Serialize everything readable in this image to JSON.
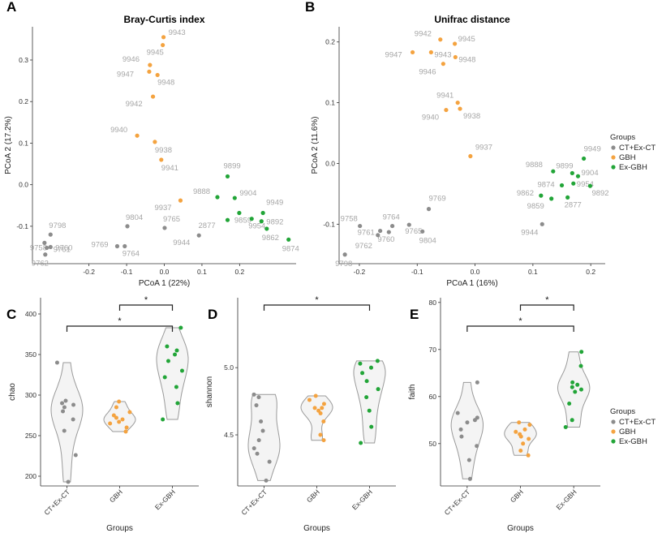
{
  "colors": {
    "CT+Ex-CT": "#8c8c8c",
    "GBH": "#f4a340",
    "Ex-GBH": "#22a538"
  },
  "panels": {
    "A": "A",
    "B": "B",
    "C": "C",
    "D": "D",
    "E": "E"
  },
  "legend": {
    "title": "Groups",
    "items": [
      "CT+Ex-CT",
      "GBH",
      "Ex-GBH"
    ]
  },
  "chart_data": [
    {
      "id": "A",
      "type": "scatter",
      "title": "Bray-Curtis index",
      "xlabel": "PCoA 1 (22%)",
      "ylabel": "PCoA 2 (17.2%)",
      "xlim": [
        -0.35,
        0.35
      ],
      "ylim": [
        -0.19,
        0.38
      ],
      "xticks": [
        "-0.2",
        "-0.1",
        "0.0",
        "0.1",
        "0.2"
      ],
      "xtick_values": [
        -0.2,
        -0.1,
        0.0,
        0.1,
        0.2
      ],
      "yticks": [
        "-0.1",
        "0.0",
        "0.1",
        "0.2",
        "0.3"
      ],
      "ytick_values": [
        -0.1,
        0.0,
        0.1,
        0.2,
        0.3
      ],
      "points": [
        {
          "label": "9943",
          "group": "GBH",
          "x": -0.002,
          "y": 0.355
        },
        {
          "label": "9945",
          "group": "GBH",
          "x": -0.004,
          "y": 0.336
        },
        {
          "label": "9946",
          "group": "GBH",
          "x": -0.038,
          "y": 0.288
        },
        {
          "label": "9947",
          "group": "GBH",
          "x": -0.04,
          "y": 0.272
        },
        {
          "label": "9948",
          "group": "GBH",
          "x": -0.018,
          "y": 0.264
        },
        {
          "label": "9942",
          "group": "GBH",
          "x": -0.03,
          "y": 0.212
        },
        {
          "label": "9940",
          "group": "GBH",
          "x": -0.072,
          "y": 0.118
        },
        {
          "label": "9938",
          "group": "GBH",
          "x": -0.025,
          "y": 0.103
        },
        {
          "label": "9941",
          "group": "GBH",
          "x": -0.008,
          "y": 0.06
        },
        {
          "label": "9937",
          "group": "GBH",
          "x": 0.043,
          "y": -0.038
        },
        {
          "label": "9899",
          "group": "Ex-GBH",
          "x": 0.168,
          "y": 0.02
        },
        {
          "label": "9888",
          "group": "Ex-GBH",
          "x": 0.141,
          "y": -0.03
        },
        {
          "label": "9904",
          "group": "Ex-GBH",
          "x": 0.187,
          "y": -0.032
        },
        {
          "label": "9859",
          "group": "Ex-GBH",
          "x": 0.199,
          "y": -0.068
        },
        {
          "label": "9949",
          "group": "Ex-GBH",
          "x": 0.262,
          "y": -0.068
        },
        {
          "label": "9954",
          "group": "Ex-GBH",
          "x": 0.232,
          "y": -0.082
        },
        {
          "label": "9892",
          "group": "Ex-GBH",
          "x": 0.258,
          "y": -0.088
        },
        {
          "label": "9862",
          "group": "Ex-GBH",
          "x": 0.272,
          "y": -0.106
        },
        {
          "label": "9874",
          "group": "Ex-GBH",
          "x": 0.33,
          "y": -0.132
        },
        {
          "label": "2877",
          "group": "Ex-GBH",
          "x": 0.168,
          "y": -0.085
        },
        {
          "label": "9804",
          "group": "CT+Ex-CT",
          "x": -0.098,
          "y": -0.1
        },
        {
          "label": "9765",
          "group": "CT+Ex-CT",
          "x": 0.001,
          "y": -0.104
        },
        {
          "label": "9769",
          "group": "CT+Ex-CT",
          "x": -0.125,
          "y": -0.148
        },
        {
          "label": "9764",
          "group": "CT+Ex-CT",
          "x": -0.105,
          "y": -0.148
        },
        {
          "label": "9944",
          "group": "CT+Ex-CT",
          "x": 0.092,
          "y": -0.122
        },
        {
          "label": "9798",
          "group": "CT+Ex-CT",
          "x": -0.302,
          "y": -0.12
        },
        {
          "label": "9758",
          "group": "CT+Ex-CT",
          "x": -0.318,
          "y": -0.14
        },
        {
          "label": "9760",
          "group": "CT+Ex-CT",
          "x": -0.302,
          "y": -0.15
        },
        {
          "label": "9761",
          "group": "CT+Ex-CT",
          "x": -0.312,
          "y": -0.152
        },
        {
          "label": "9762",
          "group": "CT+Ex-CT",
          "x": -0.316,
          "y": -0.168
        }
      ]
    },
    {
      "id": "B",
      "type": "scatter",
      "title": "Unifrac distance",
      "xlabel": "PCoA 1 (16%)",
      "ylabel": "PCoA 2 (11.6%)",
      "xlim": [
        -0.235,
        0.225
      ],
      "ylim": [
        -0.165,
        0.225
      ],
      "xticks": [
        "-0.2",
        "-0.1",
        "0.0",
        "0.1",
        "0.2"
      ],
      "xtick_values": [
        -0.2,
        -0.1,
        0.0,
        0.1,
        0.2
      ],
      "yticks": [
        "-0.1",
        "0.0",
        "0.1",
        "0.2"
      ],
      "ytick_values": [
        -0.1,
        0.0,
        0.1,
        0.2
      ],
      "points": [
        {
          "label": "9942",
          "group": "GBH",
          "x": -0.06,
          "y": 0.204
        },
        {
          "label": "9945",
          "group": "GBH",
          "x": -0.035,
          "y": 0.197
        },
        {
          "label": "9947",
          "group": "GBH",
          "x": -0.108,
          "y": 0.183
        },
        {
          "label": "9943",
          "group": "GBH",
          "x": -0.076,
          "y": 0.183
        },
        {
          "label": "9948",
          "group": "GBH",
          "x": -0.034,
          "y": 0.175
        },
        {
          "label": "9946",
          "group": "GBH",
          "x": -0.055,
          "y": 0.164
        },
        {
          "label": "9941",
          "group": "GBH",
          "x": -0.03,
          "y": 0.1
        },
        {
          "label": "9940",
          "group": "GBH",
          "x": -0.05,
          "y": 0.088
        },
        {
          "label": "9938",
          "group": "GBH",
          "x": -0.026,
          "y": 0.09
        },
        {
          "label": "9937",
          "group": "GBH",
          "x": -0.008,
          "y": 0.012
        },
        {
          "label": "9949",
          "group": "Ex-GBH",
          "x": 0.188,
          "y": 0.008
        },
        {
          "label": "9888",
          "group": "Ex-GBH",
          "x": 0.135,
          "y": -0.013
        },
        {
          "label": "9899",
          "group": "Ex-GBH",
          "x": 0.168,
          "y": -0.016
        },
        {
          "label": "9904",
          "group": "Ex-GBH",
          "x": 0.178,
          "y": -0.021
        },
        {
          "label": "9874",
          "group": "Ex-GBH",
          "x": 0.15,
          "y": -0.036
        },
        {
          "label": "9954",
          "group": "Ex-GBH",
          "x": 0.17,
          "y": -0.033
        },
        {
          "label": "9892",
          "group": "Ex-GBH",
          "x": 0.199,
          "y": -0.037
        },
        {
          "label": "9862",
          "group": "Ex-GBH",
          "x": 0.114,
          "y": -0.053
        },
        {
          "label": "9859",
          "group": "Ex-GBH",
          "x": 0.132,
          "y": -0.058
        },
        {
          "label": "2877",
          "group": "Ex-GBH",
          "x": 0.16,
          "y": -0.056
        },
        {
          "label": "9769",
          "group": "CT+Ex-CT",
          "x": -0.08,
          "y": -0.075
        },
        {
          "label": "9764",
          "group": "CT+Ex-CT",
          "x": -0.143,
          "y": -0.103
        },
        {
          "label": "9765",
          "group": "CT+Ex-CT",
          "x": -0.114,
          "y": -0.101
        },
        {
          "label": "9758",
          "group": "CT+Ex-CT",
          "x": -0.199,
          "y": -0.103
        },
        {
          "label": "9761",
          "group": "CT+Ex-CT",
          "x": -0.164,
          "y": -0.111
        },
        {
          "label": "9760",
          "group": "CT+Ex-CT",
          "x": -0.149,
          "y": -0.113
        },
        {
          "label": "9762",
          "group": "CT+Ex-CT",
          "x": -0.168,
          "y": -0.118
        },
        {
          "label": "9804",
          "group": "CT+Ex-CT",
          "x": -0.091,
          "y": -0.112
        },
        {
          "label": "9944",
          "group": "CT+Ex-CT",
          "x": 0.116,
          "y": -0.1
        },
        {
          "label": "9798",
          "group": "CT+Ex-CT",
          "x": -0.225,
          "y": -0.15
        }
      ]
    },
    {
      "id": "C",
      "type": "violin",
      "xlabel": "Groups",
      "ylabel": "chao",
      "categories": [
        "CT+Ex-CT",
        "GBH",
        "Ex-GBH"
      ],
      "ylim": [
        188,
        420
      ],
      "yticks": [
        "200",
        "250",
        "300",
        "350",
        "400"
      ],
      "ytick_values": [
        200,
        250,
        300,
        350,
        400
      ],
      "series": [
        {
          "name": "CT+Ex-CT",
          "values": [
            193,
            226,
            256,
            270,
            280,
            285,
            288,
            290,
            293,
            340
          ]
        },
        {
          "name": "GBH",
          "values": [
            255,
            260,
            265,
            267,
            270,
            272,
            275,
            279,
            285,
            292
          ]
        },
        {
          "name": "Ex-GBH",
          "values": [
            270,
            290,
            310,
            322,
            330,
            342,
            350,
            355,
            360,
            383
          ]
        }
      ],
      "significance": [
        {
          "from": "CT+Ex-CT",
          "to": "Ex-GBH",
          "label": "*"
        },
        {
          "from": "GBH",
          "to": "Ex-GBH",
          "label": "*"
        }
      ]
    },
    {
      "id": "D",
      "type": "violin",
      "xlabel": "Groups",
      "ylabel": "shannon",
      "categories": [
        "CT+Ex-CT",
        "GBH",
        "Ex-GBH"
      ],
      "ylim": [
        4.12,
        5.52
      ],
      "yticks": [
        "4.5",
        "5.0"
      ],
      "ytick_values": [
        4.5,
        5.0
      ],
      "series": [
        {
          "name": "CT+Ex-CT",
          "values": [
            4.16,
            4.3,
            4.36,
            4.4,
            4.46,
            4.53,
            4.6,
            4.72,
            4.78,
            4.8
          ]
        },
        {
          "name": "GBH",
          "values": [
            4.46,
            4.5,
            4.6,
            4.66,
            4.68,
            4.7,
            4.7,
            4.73,
            4.76,
            4.79
          ]
        },
        {
          "name": "Ex-GBH",
          "values": [
            4.44,
            4.56,
            4.68,
            4.78,
            4.84,
            4.9,
            4.96,
            5.0,
            5.03,
            5.05
          ]
        }
      ],
      "significance": [
        {
          "from": "CT+Ex-CT",
          "to": "Ex-GBH",
          "label": "*"
        }
      ]
    },
    {
      "id": "E",
      "type": "violin",
      "xlabel": "Groups",
      "ylabel": "faith",
      "categories": [
        "CT+Ex-CT",
        "GBH",
        "Ex-GBH"
      ],
      "ylim": [
        41,
        81
      ],
      "yticks": [
        "50",
        "60",
        "70",
        "80"
      ],
      "ytick_values": [
        50,
        60,
        70,
        80
      ],
      "series": [
        {
          "name": "CT+Ex-CT",
          "values": [
            42.5,
            46.5,
            49.5,
            51.5,
            53.0,
            54.5,
            55.0,
            55.5,
            56.5,
            63.0
          ]
        },
        {
          "name": "GBH",
          "values": [
            47.5,
            48.5,
            50.0,
            51.0,
            51.5,
            52.0,
            52.5,
            53.0,
            54.0,
            54.5
          ]
        },
        {
          "name": "Ex-GBH",
          "values": [
            53.5,
            55.0,
            58.5,
            61.0,
            61.5,
            62.0,
            62.5,
            63.0,
            66.5,
            69.5
          ]
        }
      ],
      "significance": [
        {
          "from": "CT+Ex-CT",
          "to": "Ex-GBH",
          "label": "*"
        },
        {
          "from": "GBH",
          "to": "Ex-GBH",
          "label": "*"
        }
      ]
    }
  ]
}
